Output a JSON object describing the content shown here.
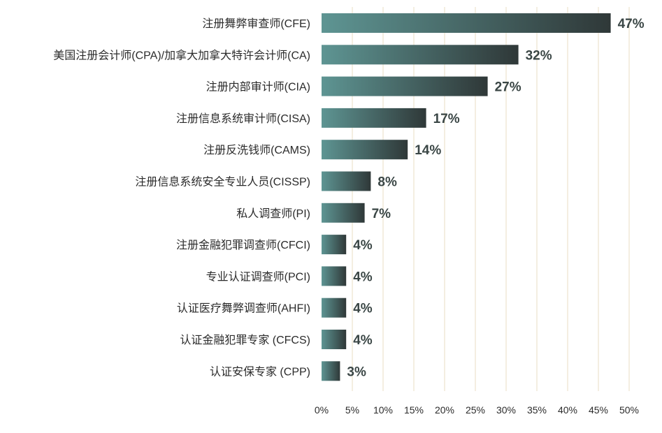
{
  "chart_data": {
    "type": "bar",
    "orientation": "horizontal",
    "categories": [
      "注册舞弊审查师(CFE)",
      "美国注册会计师(CPA)/加拿大加拿大特许会计师(CA)",
      "注册内部审计师(CIA)",
      "注册信息系统审计师(CISA)",
      "注册反洗钱师(CAMS)",
      "注册信息系统安全专业人员(CISSP)",
      "私人调查师(PI)",
      "注册金融犯罪调查师(CFCI)",
      "专业认证调查师(PCI)",
      "认证医疗舞弊调查师(AHFI)",
      "认证金融犯罪专家 (CFCS)",
      "认证安保专家 (CPP)"
    ],
    "values": [
      47,
      32,
      27,
      17,
      14,
      8,
      7,
      4,
      4,
      4,
      4,
      3
    ],
    "value_labels": [
      "47%",
      "32%",
      "27%",
      "17%",
      "14%",
      "8%",
      "7%",
      "4%",
      "4%",
      "4%",
      "4%",
      "3%"
    ],
    "x_ticks": [
      0,
      5,
      10,
      15,
      20,
      25,
      30,
      35,
      40,
      45,
      50
    ],
    "x_tick_labels": [
      "0%",
      "5%",
      "10%",
      "15%",
      "20%",
      "25%",
      "30%",
      "35%",
      "40%",
      "45%",
      "50%"
    ],
    "xlim": [
      0,
      50
    ],
    "title": "",
    "xlabel": "",
    "ylabel": "",
    "grid": "vertical",
    "colors": {
      "bar_start": "#5e9593",
      "bar_end": "#2f3838",
      "gridline": "#e8dcc3",
      "data_label": "#3a4645",
      "text": "#2b2b2b"
    }
  }
}
